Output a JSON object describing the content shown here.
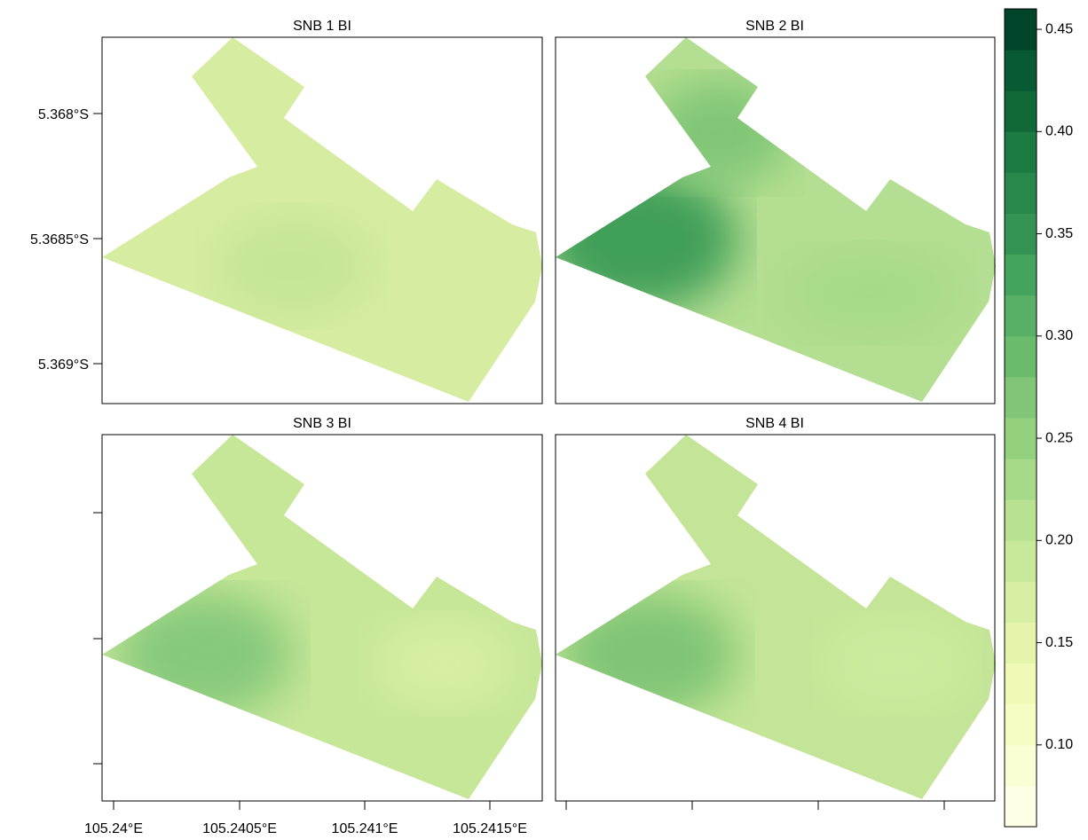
{
  "panels": [
    {
      "title": "SNB 1 BI"
    },
    {
      "title": "SNB 2 BI"
    },
    {
      "title": "SNB 3 BI"
    },
    {
      "title": "SNB 4 BI"
    }
  ],
  "x_axis": {
    "ticks": [
      "105.24°E",
      "105.2405°E",
      "105.241°E",
      "105.2415°E"
    ]
  },
  "y_axis": {
    "ticks": [
      "5.368°S",
      "5.3685°S",
      "5.369°S"
    ]
  },
  "colorkey": {
    "lim": [
      0.06,
      0.46
    ],
    "ticks": [
      {
        "value": 0.1,
        "label": "0.10"
      },
      {
        "value": 0.15,
        "label": "0.15"
      },
      {
        "value": 0.2,
        "label": "0.20"
      },
      {
        "value": 0.25,
        "label": "0.25"
      },
      {
        "value": 0.3,
        "label": "0.30"
      },
      {
        "value": 0.35,
        "label": "0.35"
      },
      {
        "value": 0.4,
        "label": "0.40"
      },
      {
        "value": 0.45,
        "label": "0.45"
      }
    ],
    "colors": [
      "#ffffe5",
      "#fbfdd5",
      "#f7fcc4",
      "#f0f9b5",
      "#e4f4ab",
      "#d7efa2",
      "#c8e89a",
      "#b8e291",
      "#a6da88",
      "#94d17f",
      "#80c676",
      "#6bbb6d",
      "#57b065",
      "#44a35c",
      "#359453",
      "#28874b",
      "#1c7a43",
      "#11693a",
      "#085a32",
      "#004529"
    ]
  }
}
